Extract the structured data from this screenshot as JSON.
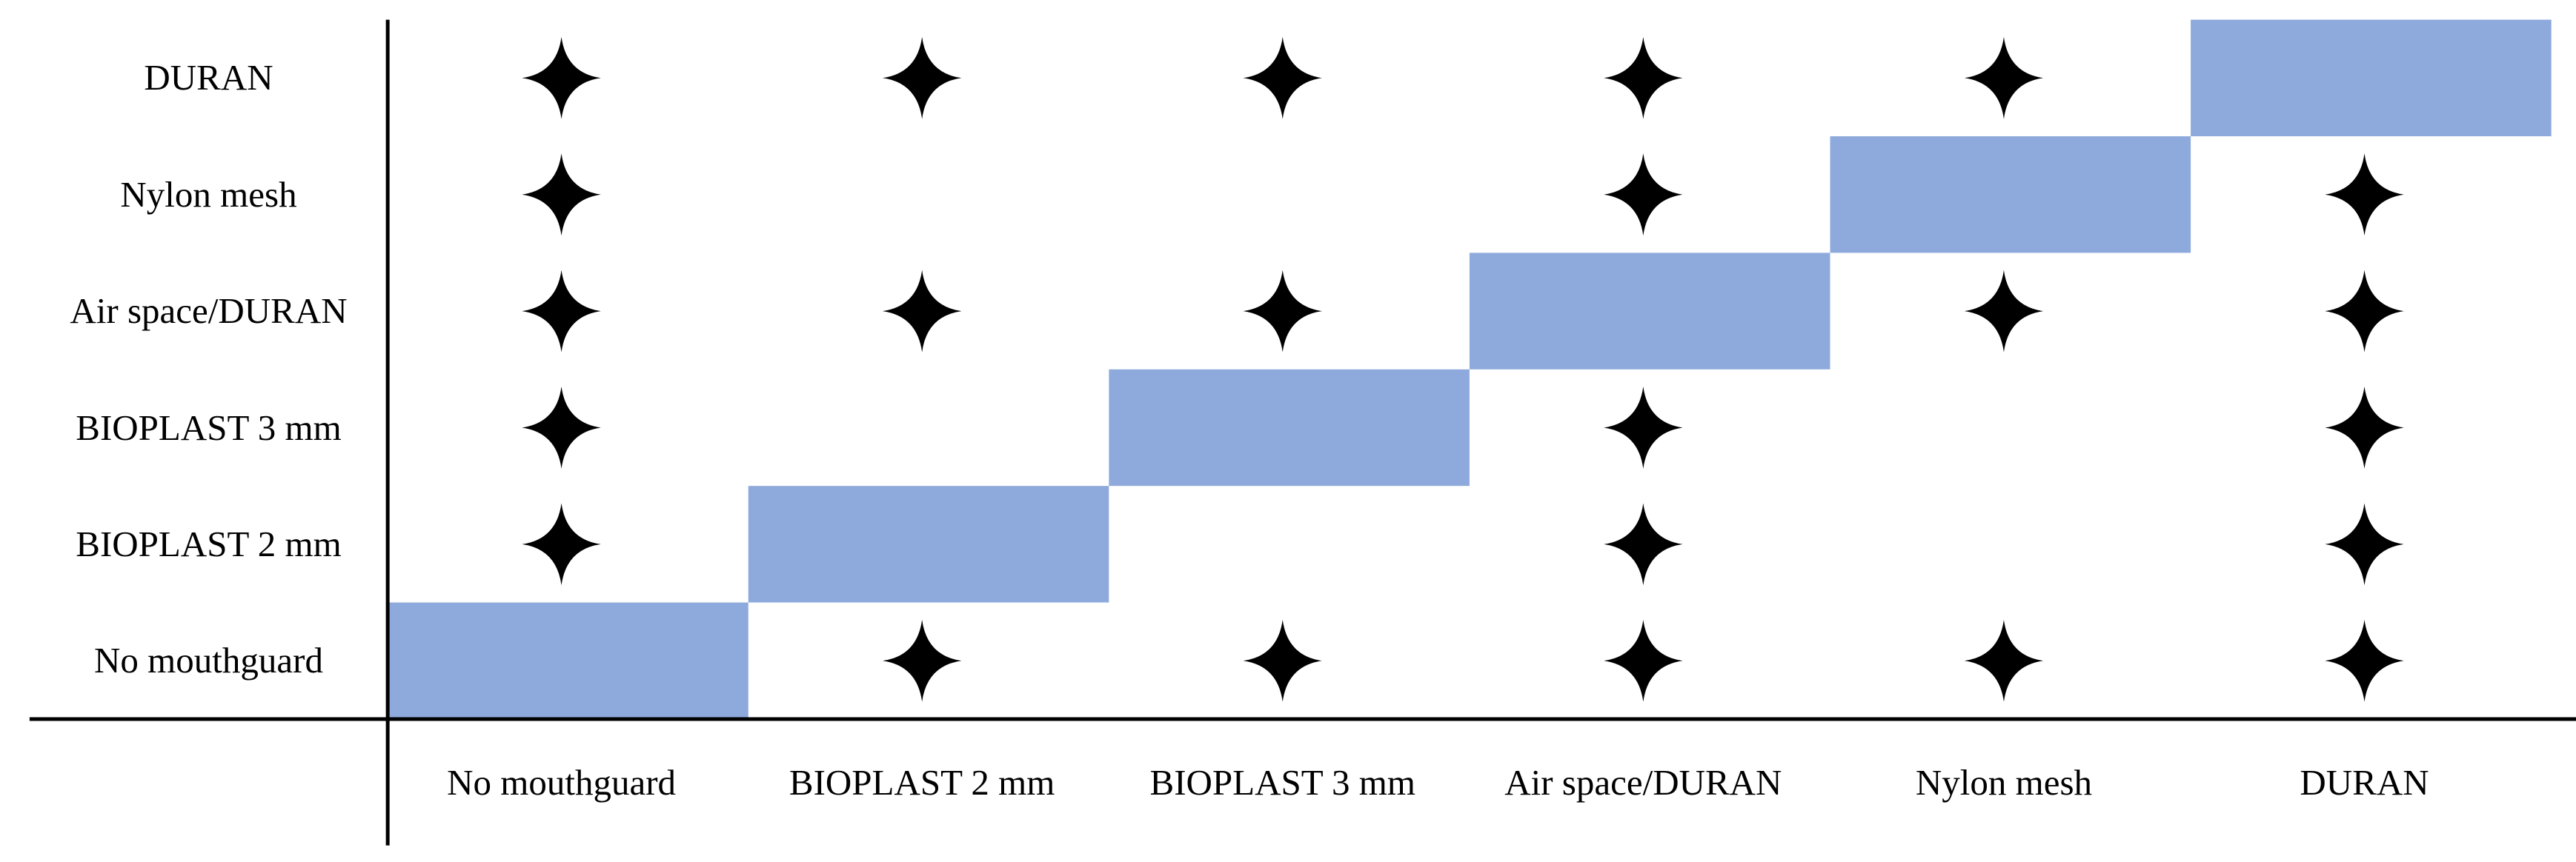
{
  "row_labels": [
    "DURAN",
    "Nylon mesh",
    "Air space/DURAN",
    "BIOPLAST 3 mm",
    "BIOPLAST 2 mm",
    "No mouthguard"
  ],
  "column_labels": [
    "No mouthguard",
    "BIOPLAST 2 mm",
    "BIOPLAST 3 mm",
    "Air space/DURAN",
    "Nylon mesh",
    "DURAN"
  ],
  "cells": [
    [
      true,
      true,
      true,
      true,
      true,
      false
    ],
    [
      true,
      false,
      false,
      true,
      false,
      true
    ],
    [
      true,
      true,
      true,
      false,
      true,
      true
    ],
    [
      true,
      false,
      false,
      true,
      false,
      true
    ],
    [
      true,
      false,
      false,
      true,
      false,
      true
    ],
    [
      false,
      true,
      true,
      true,
      true,
      true
    ]
  ]
}
